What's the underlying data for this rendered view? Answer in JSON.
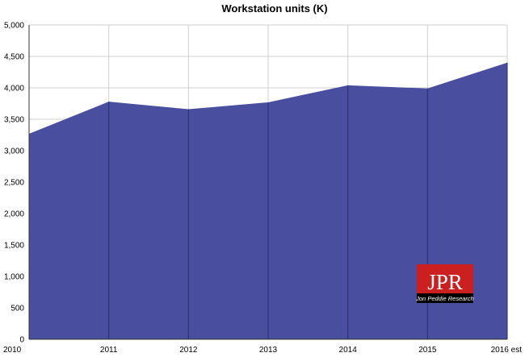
{
  "chart_data": {
    "type": "area",
    "title": "Workstation units (K)",
    "xlabel": "",
    "ylabel": "",
    "categories": [
      "2010",
      "2011",
      "2012",
      "2013",
      "2014",
      "2015",
      "2016 est"
    ],
    "values": [
      3270,
      3780,
      3660,
      3770,
      4040,
      3990,
      4400
    ],
    "ylim": [
      0,
      5000
    ],
    "y_ticks": [
      "0",
      "500",
      "1,000",
      "1,500",
      "2,000",
      "2,500",
      "3,000",
      "3,500",
      "4,000",
      "4,500",
      "5,000"
    ],
    "grid": true,
    "legend": "none",
    "colors": {
      "fill": "#4a4e9e",
      "grid": "#d0d0d0",
      "axis": "#333333"
    }
  },
  "logo": {
    "main": "JPR",
    "sub": "Jon Peddie Research",
    "color": "#cc1f1f"
  }
}
